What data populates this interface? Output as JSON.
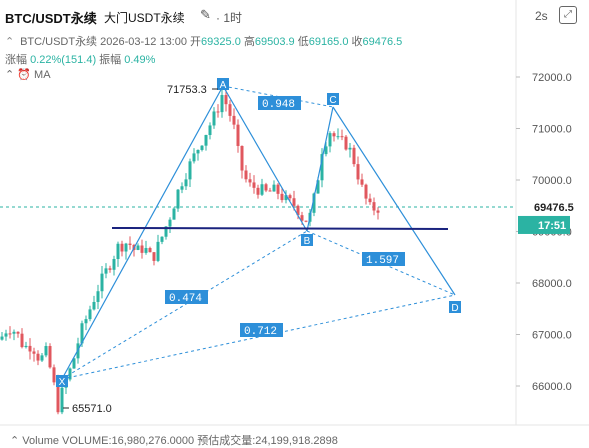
{
  "header": {
    "symbol": "BTC/USDT永续",
    "exchange": "大门USDT永续",
    "edit_icon": "✎",
    "timeframe": "· 1时",
    "countdown": "2s",
    "expand_icon": "⤢"
  },
  "ohlc": {
    "name": "BTC/USDT永续",
    "time": "2026-03-12 13:00",
    "open_label": "开",
    "open": "69325.0",
    "high_label": "高",
    "high": "69503.9",
    "low_label": "低",
    "low": "69165.0",
    "close_label": "收",
    "close": "69476.5",
    "change_label": "涨幅",
    "change": "0.22%(151.4)",
    "amplitude_label": "振幅",
    "amplitude": "0.49%"
  },
  "indicator": {
    "name": "MA"
  },
  "volume_line": {
    "label": "Volume",
    "volume": "VOLUME:16,980,276.0000",
    "estimate": "预估成交量:24,199,918.2898"
  },
  "price_axis": {
    "ticks": [
      {
        "label": "72000.0",
        "value": 72000
      },
      {
        "label": "71000.0",
        "value": 71000
      },
      {
        "label": "70000.0",
        "value": 70000
      },
      {
        "label": "69000.0",
        "value": 69000
      },
      {
        "label": "68000.0",
        "value": 68000
      },
      {
        "label": "67000.0",
        "value": 67000
      },
      {
        "label": "66000.0",
        "value": 66000
      }
    ],
    "current_price": "69476.5",
    "current_value": 69476.5,
    "bar_timer": "17:51"
  },
  "annotations": {
    "high_price": "71753.3",
    "low_price": "65571.0",
    "ratio_ab_c": "0.948",
    "ratio_bc_d": "1.597",
    "ratio_xa_b": "0.474",
    "ratio_xa_d": "0.712",
    "point_labels": [
      "X",
      "A",
      "B",
      "C",
      "D"
    ]
  },
  "colors": {
    "up": "#2bb3a3",
    "down": "#e0575e",
    "pattern": "#2d8fd9",
    "hline": "#1a237e",
    "price_tag": "#2bb3a3"
  }
}
